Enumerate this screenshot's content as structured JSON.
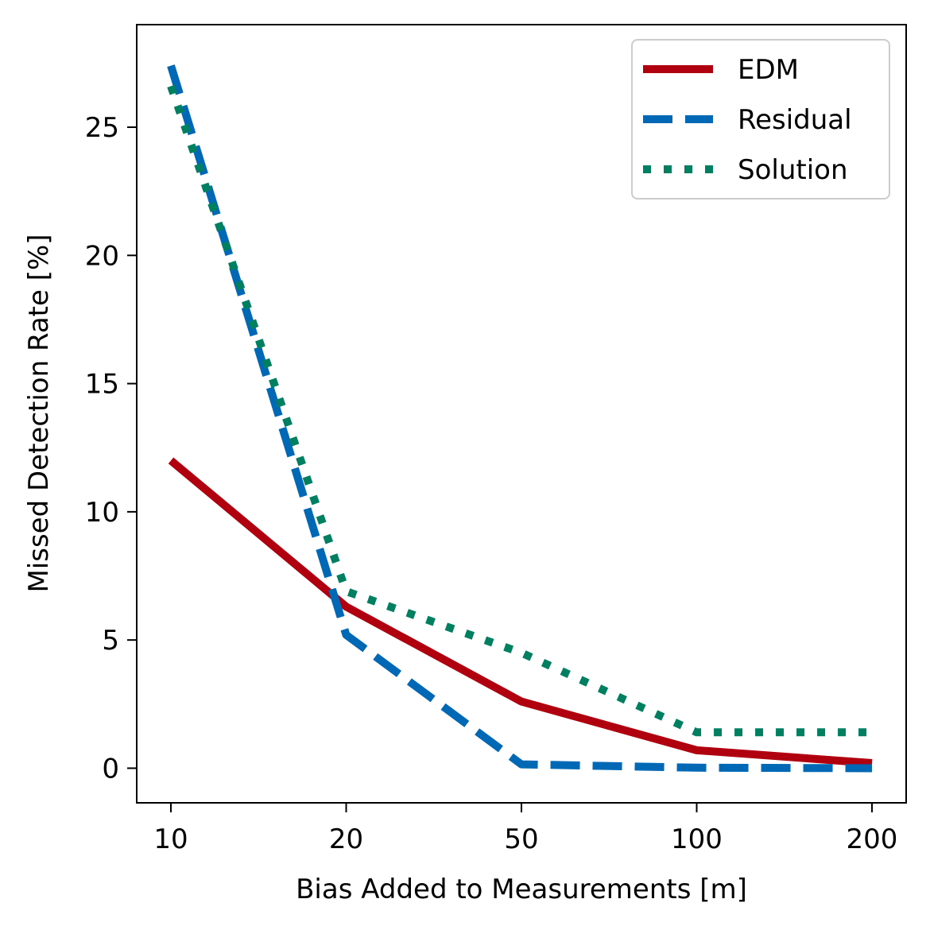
{
  "chart_data": {
    "type": "line",
    "title": "",
    "xlabel": "Bias Added to Measurements [m]",
    "ylabel": "Missed Detection Rate [%]",
    "categories": [
      "10",
      "20",
      "50",
      "100",
      "200"
    ],
    "yticks": [
      0,
      5,
      10,
      15,
      20,
      25
    ],
    "ylim": [
      -1.35,
      29.0
    ],
    "grid": false,
    "legend_position": "top-right",
    "series": [
      {
        "name": "EDM",
        "values": [
          12.0,
          6.3,
          2.6,
          0.7,
          0.2
        ],
        "color": "#b0000f",
        "style": "solid"
      },
      {
        "name": "Residual",
        "values": [
          27.4,
          5.2,
          0.15,
          0.02,
          0.0
        ],
        "color": "#0068b4",
        "style": "dashed"
      },
      {
        "name": "Solution",
        "values": [
          26.6,
          6.9,
          4.5,
          1.4,
          1.4
        ],
        "color": "#008060",
        "style": "dotted"
      }
    ]
  }
}
